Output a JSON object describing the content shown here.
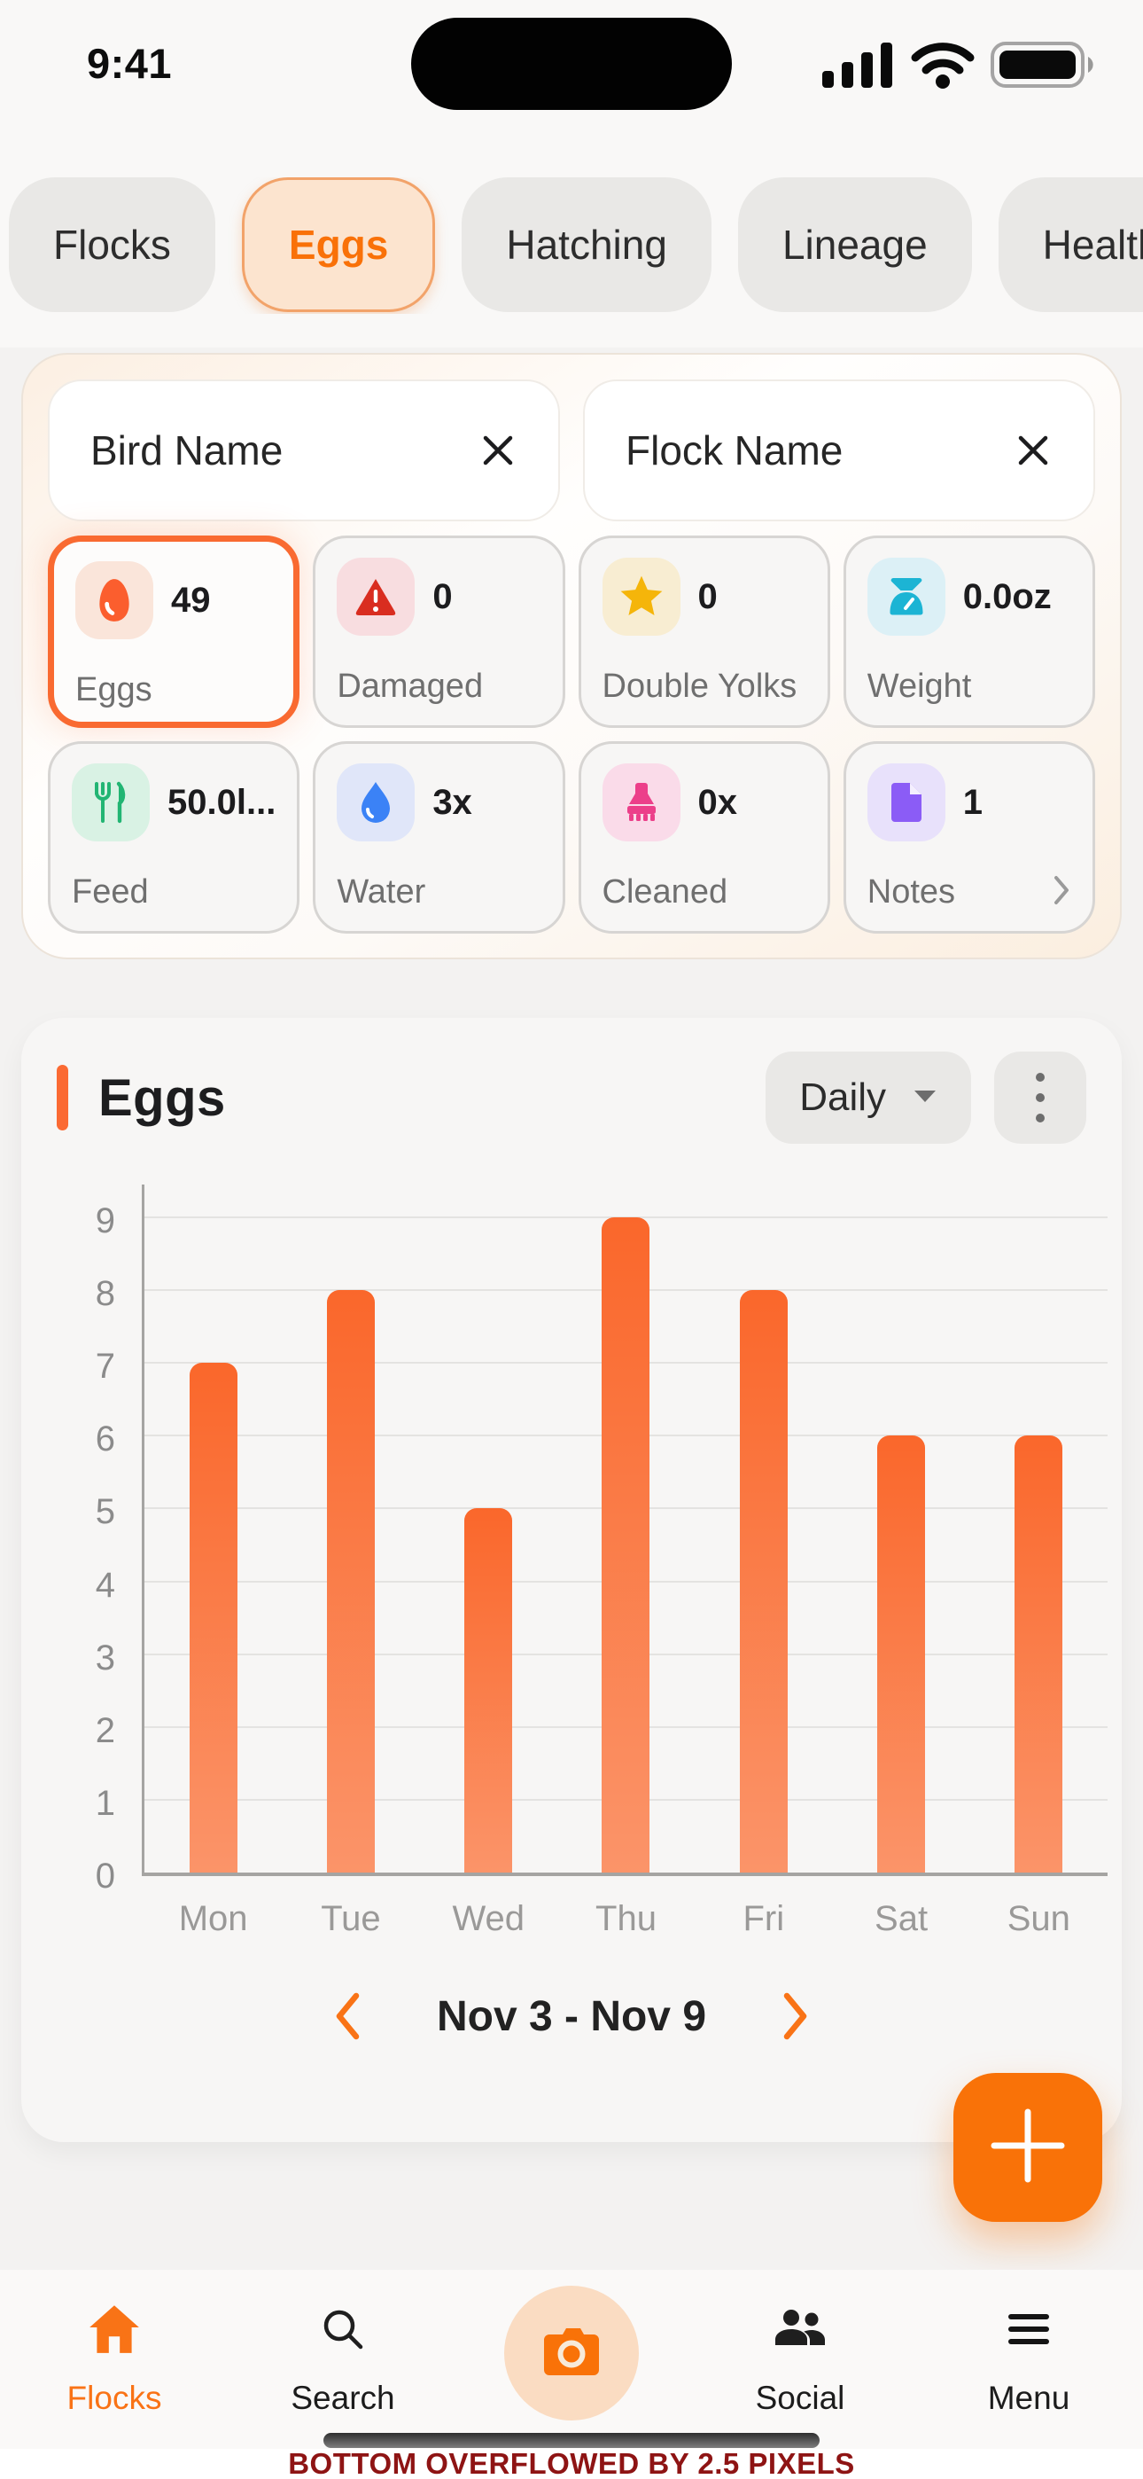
{
  "status_bar": {
    "time": "9:41"
  },
  "top_tabs": {
    "items": [
      {
        "label": "Flocks",
        "selected": false
      },
      {
        "label": "Eggs",
        "selected": true
      },
      {
        "label": "Hatching",
        "selected": false
      },
      {
        "label": "Lineage",
        "selected": false
      },
      {
        "label": "Health",
        "selected": false
      }
    ]
  },
  "filters": {
    "bird_name_value": "Bird Name",
    "flock_name_value": "Flock Name"
  },
  "stats": [
    {
      "label": "Eggs",
      "value": "49",
      "icon": "egg-icon",
      "accent": "#fb5e2e",
      "chip_bg": "#fae5da",
      "selected": true
    },
    {
      "label": "Damaged",
      "value": "0",
      "icon": "warning-triangle-icon",
      "accent": "#d92d20",
      "chip_bg": "#f8dde0",
      "selected": false
    },
    {
      "label": "Double Yolks",
      "value": "0",
      "icon": "star-icon",
      "accent": "#f5b50a",
      "chip_bg": "#f8edd2",
      "selected": false
    },
    {
      "label": "Weight",
      "value": "0.0oz",
      "icon": "scale-icon",
      "accent": "#1cb4d4",
      "chip_bg": "#dcf0f6",
      "selected": false
    },
    {
      "label": "Feed",
      "value": "50.0l...",
      "icon": "fork-knife-icon",
      "accent": "#22b573",
      "chip_bg": "#d9f2e4",
      "selected": false
    },
    {
      "label": "Water",
      "value": "3x",
      "icon": "droplet-icon",
      "accent": "#3b82f6",
      "chip_bg": "#e0e6f9",
      "selected": false
    },
    {
      "label": "Cleaned",
      "value": "0x",
      "icon": "brush-icon",
      "accent": "#ec3f8a",
      "chip_bg": "#fadbe9",
      "selected": false
    },
    {
      "label": "Notes",
      "value": "1",
      "icon": "note-icon",
      "accent": "#8b5cf6",
      "chip_bg": "#e8e1fb",
      "selected": false,
      "has_chevron": true
    }
  ],
  "chart_card": {
    "title": "Eggs",
    "period_selected": "Daily",
    "date_range": "Nov 3 - Nov 9",
    "accent_color": "#fb6a33"
  },
  "chart_data": {
    "type": "bar",
    "title": "Eggs",
    "categories": [
      "Mon",
      "Tue",
      "Wed",
      "Thu",
      "Fri",
      "Sat",
      "Sun"
    ],
    "values": [
      7,
      8,
      5,
      9,
      8,
      6,
      6
    ],
    "xlabel": "",
    "ylabel": "",
    "ylim": [
      0,
      9.5
    ],
    "yticks": [
      0,
      1,
      2,
      3,
      4,
      5,
      6,
      7,
      8,
      9
    ],
    "grid": true,
    "legend": false,
    "bar_color_top": "#fa672b",
    "bar_color_bottom": "#fb9469"
  },
  "fab": {
    "label": "+"
  },
  "bottom_nav": {
    "items": [
      {
        "label": "Flocks",
        "icon": "home-icon",
        "active": true
      },
      {
        "label": "Search",
        "icon": "search-icon",
        "active": false
      },
      {
        "label": "",
        "icon": "camera-icon",
        "active": false
      },
      {
        "label": "Social",
        "icon": "people-icon",
        "active": false
      },
      {
        "label": "Menu",
        "icon": "menu-icon",
        "active": false
      }
    ]
  },
  "overflow_warning": "BOTTOM OVERFLOWED BY 2.5 PIXELS",
  "colors": {
    "primary_orange": "#f97316",
    "fab_orange": "#f97208",
    "selected_tab_bg": "#fce4cf",
    "warning_red": "#8e1414"
  }
}
